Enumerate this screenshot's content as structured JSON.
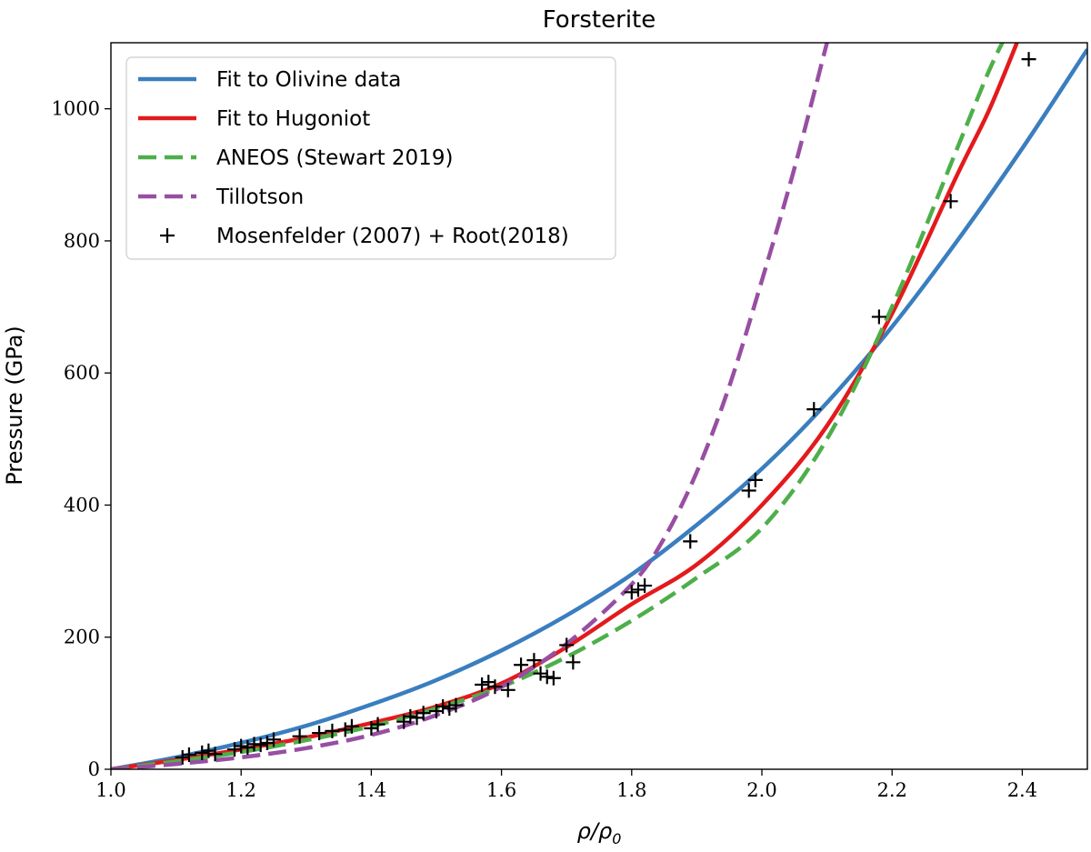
{
  "chart_data": {
    "type": "line",
    "title": "Forsterite",
    "xlabel": "ρ/ρ",
    "xlabel_subscript": "0",
    "ylabel": "Pressure (GPa)",
    "xlim": [
      1.0,
      2.5
    ],
    "ylim": [
      0,
      1100
    ],
    "xticks": [
      1.0,
      1.2,
      1.4,
      1.6,
      1.8,
      2.0,
      2.2,
      2.4
    ],
    "xtick_labels": [
      "1.0",
      "1.2",
      "1.4",
      "1.6",
      "1.8",
      "2.0",
      "2.2",
      "2.4"
    ],
    "yticks": [
      0,
      200,
      400,
      600,
      800,
      1000
    ],
    "ytick_labels": [
      "0",
      "200",
      "400",
      "600",
      "800",
      "1000"
    ],
    "legend_position": "top-left",
    "series": [
      {
        "name": "Fit to Olivine data",
        "style": "solid",
        "color": "#3a7ebf",
        "x": [
          1.0,
          1.1,
          1.2,
          1.3,
          1.4,
          1.5,
          1.6,
          1.7,
          1.8,
          1.9,
          2.0,
          2.1,
          2.2,
          2.3,
          2.4,
          2.5
        ],
        "y": [
          0,
          18,
          40,
          66,
          98,
          135,
          180,
          233,
          295,
          370,
          455,
          555,
          670,
          800,
          940,
          1090
        ]
      },
      {
        "name": "Fit to Hugoniot",
        "style": "solid",
        "color": "#e31a1c",
        "x": [
          1.0,
          1.1,
          1.2,
          1.3,
          1.4,
          1.5,
          1.6,
          1.7,
          1.8,
          1.9,
          2.0,
          2.1,
          2.2,
          2.3,
          2.35,
          2.4
        ],
        "y": [
          0,
          14,
          30,
          48,
          70,
          95,
          130,
          185,
          250,
          310,
          400,
          520,
          690,
          900,
          1000,
          1120
        ]
      },
      {
        "name": "ANEOS (Stewart 2019)",
        "style": "dashed",
        "color": "#4daf4a",
        "x": [
          1.0,
          1.1,
          1.2,
          1.3,
          1.4,
          1.5,
          1.6,
          1.7,
          1.8,
          1.9,
          2.0,
          2.1,
          2.2,
          2.3,
          2.35,
          2.38
        ],
        "y": [
          0,
          12,
          26,
          44,
          65,
          92,
          125,
          170,
          225,
          290,
          365,
          500,
          700,
          940,
          1060,
          1120
        ]
      },
      {
        "name": "Tillotson",
        "style": "dashed",
        "color": "#984ea3",
        "x": [
          1.0,
          1.1,
          1.2,
          1.3,
          1.4,
          1.5,
          1.6,
          1.7,
          1.8,
          1.85,
          1.9,
          1.95,
          2.0,
          2.05,
          2.1
        ],
        "y": [
          0,
          8,
          18,
          32,
          52,
          82,
          125,
          190,
          280,
          350,
          450,
          580,
          740,
          910,
          1100
        ]
      }
    ],
    "scatter": {
      "name": "Mosenfelder (2007) + Root(2018)",
      "marker": "+",
      "color": "#000000",
      "x": [
        1.11,
        1.12,
        1.14,
        1.15,
        1.16,
        1.19,
        1.2,
        1.21,
        1.22,
        1.23,
        1.24,
        1.25,
        1.29,
        1.32,
        1.34,
        1.36,
        1.37,
        1.4,
        1.41,
        1.45,
        1.46,
        1.47,
        1.48,
        1.5,
        1.51,
        1.52,
        1.53,
        1.57,
        1.58,
        1.59,
        1.61,
        1.63,
        1.65,
        1.66,
        1.67,
        1.68,
        1.7,
        1.71,
        1.8,
        1.81,
        1.82,
        1.89,
        1.98,
        1.99,
        2.08,
        2.18,
        2.29,
        2.41
      ],
      "y": [
        18,
        22,
        25,
        28,
        23,
        30,
        35,
        33,
        38,
        37,
        40,
        45,
        50,
        55,
        58,
        60,
        65,
        62,
        68,
        72,
        80,
        78,
        85,
        88,
        95,
        92,
        97,
        128,
        132,
        125,
        120,
        158,
        165,
        145,
        140,
        138,
        188,
        162,
        268,
        272,
        278,
        345,
        422,
        438,
        545,
        685,
        860,
        1075
      ]
    }
  }
}
